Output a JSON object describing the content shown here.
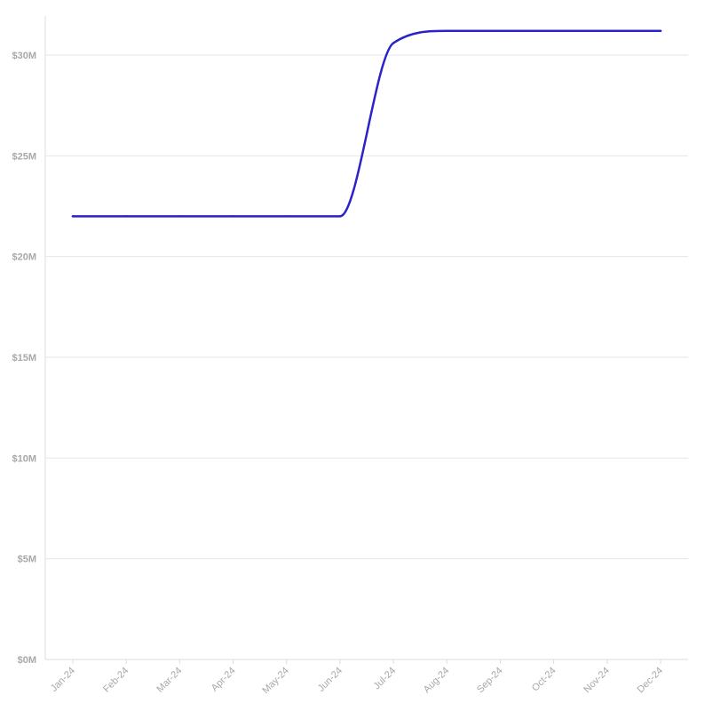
{
  "chart_data": {
    "type": "line",
    "title": "",
    "xlabel": "",
    "ylabel": "",
    "categories": [
      "Jan-24",
      "Feb-24",
      "Mar-24",
      "Apr-24",
      "May-24",
      "Jun-24",
      "Jul-24",
      "Aug-24",
      "Sep-24",
      "Oct-24",
      "Nov-24",
      "Dec-24"
    ],
    "series": [
      {
        "values": [
          22.0,
          22.0,
          22.0,
          22.0,
          22.0,
          22.0,
          30.6,
          31.2,
          31.2,
          31.2,
          31.2,
          31.2
        ]
      }
    ],
    "ylim": [
      0,
      32
    ],
    "y_ticks": [
      {
        "value": 0,
        "label": "$0M"
      },
      {
        "value": 5,
        "label": "$5M"
      },
      {
        "value": 10,
        "label": "$10M"
      },
      {
        "value": 15,
        "label": "$15M"
      },
      {
        "value": 20,
        "label": "$20M"
      },
      {
        "value": 25,
        "label": "$25M"
      },
      {
        "value": 30,
        "label": "$30M"
      }
    ],
    "y_unit": "$M",
    "grid": "horizontal",
    "legend": "none",
    "colors": {
      "line": "#2b22c9",
      "grid": "#e6e6e6",
      "axis": "#dddddd",
      "label": "#a8a8a8"
    }
  }
}
